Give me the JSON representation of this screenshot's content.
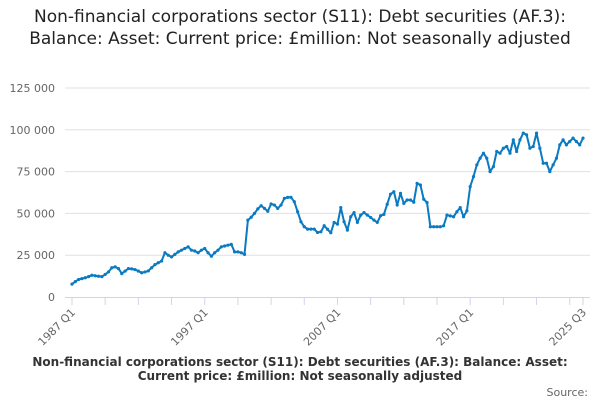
{
  "chart_data": {
    "type": "line",
    "title": "Non-financial corporations sector (S11): Debt securities (AF.3): Balance: Asset: Current price: £million: Not seasonally adjusted",
    "xlabel": "",
    "ylabel": "",
    "ylim": [
      0,
      125000
    ],
    "yticks": [
      0,
      25000,
      50000,
      75000,
      100000,
      125000
    ],
    "ytick_labels": [
      "0",
      "25 000",
      "50 000",
      "75 000",
      "100 000",
      "125 000"
    ],
    "x_start": "1987 Q1",
    "x_end": "2025 Q3",
    "xtick_labels": [
      {
        "label": "1987 Q1",
        "index": 0
      },
      {
        "label": "1997 Q1",
        "index": 40
      },
      {
        "label": "2007 Q1",
        "index": 80
      },
      {
        "label": "2017 Q1",
        "index": 120
      },
      {
        "label": "2025 Q3",
        "index": 154
      }
    ],
    "grid": true,
    "legend_position": "bottom",
    "series": [
      {
        "name": "Non-financial corporations sector (S11): Debt securities (AF.3): Balance: Asset: Current price: £million: Not seasonally adjusted",
        "color": "#0a7ac2",
        "values": [
          7700,
          9200,
          10500,
          11000,
          11500,
          12200,
          13000,
          12700,
          12400,
          12200,
          13500,
          15000,
          17500,
          18000,
          17000,
          14000,
          15500,
          17000,
          16800,
          16400,
          15500,
          14500,
          15000,
          15600,
          17500,
          19400,
          20500,
          21500,
          26500,
          25000,
          24000,
          25500,
          27000,
          28000,
          29000,
          30000,
          28000,
          27500,
          26500,
          28000,
          29000,
          26500,
          24400,
          26500,
          28000,
          30000,
          30500,
          31000,
          31500,
          27000,
          27000,
          26500,
          25500,
          46000,
          47700,
          50000,
          52700,
          54600,
          53000,
          51300,
          55600,
          55000,
          53000,
          55000,
          59000,
          59600,
          59600,
          57000,
          51000,
          45000,
          42000,
          40600,
          40600,
          40600,
          38600,
          39000,
          42600,
          40500,
          38400,
          44600,
          43600,
          53500,
          45000,
          40000,
          48000,
          50500,
          44600,
          49000,
          50500,
          49000,
          47600,
          46000,
          44600,
          48600,
          49400,
          55500,
          61500,
          63000,
          55000,
          62000,
          56000,
          58000,
          58000,
          56700,
          68000,
          67000,
          58500,
          56500,
          42000,
          42000,
          42000,
          42000,
          42600,
          49000,
          48500,
          48000,
          51000,
          53500,
          48000,
          51500,
          66000,
          72000,
          79000,
          83000,
          86000,
          83000,
          75000,
          78000,
          87000,
          86000,
          89000,
          90000,
          86000,
          94000,
          87000,
          94000,
          98000,
          97000,
          89000,
          90000,
          98000,
          89000,
          80000,
          80000,
          75000,
          79000,
          83000,
          91000,
          94000,
          91000,
          93000,
          95000,
          93000,
          91000,
          95000
        ]
      }
    ]
  },
  "title": "Non-financial corporations sector (S11): Debt securities (AF.3): Balance: Asset: Current price: £million: Not seasonally adjusted",
  "legend_label": "Non-financial corporations sector (S11): Debt securities (AF.3): Balance: Asset: Current price: £million: Not seasonally adjusted",
  "source_label": "Source:"
}
